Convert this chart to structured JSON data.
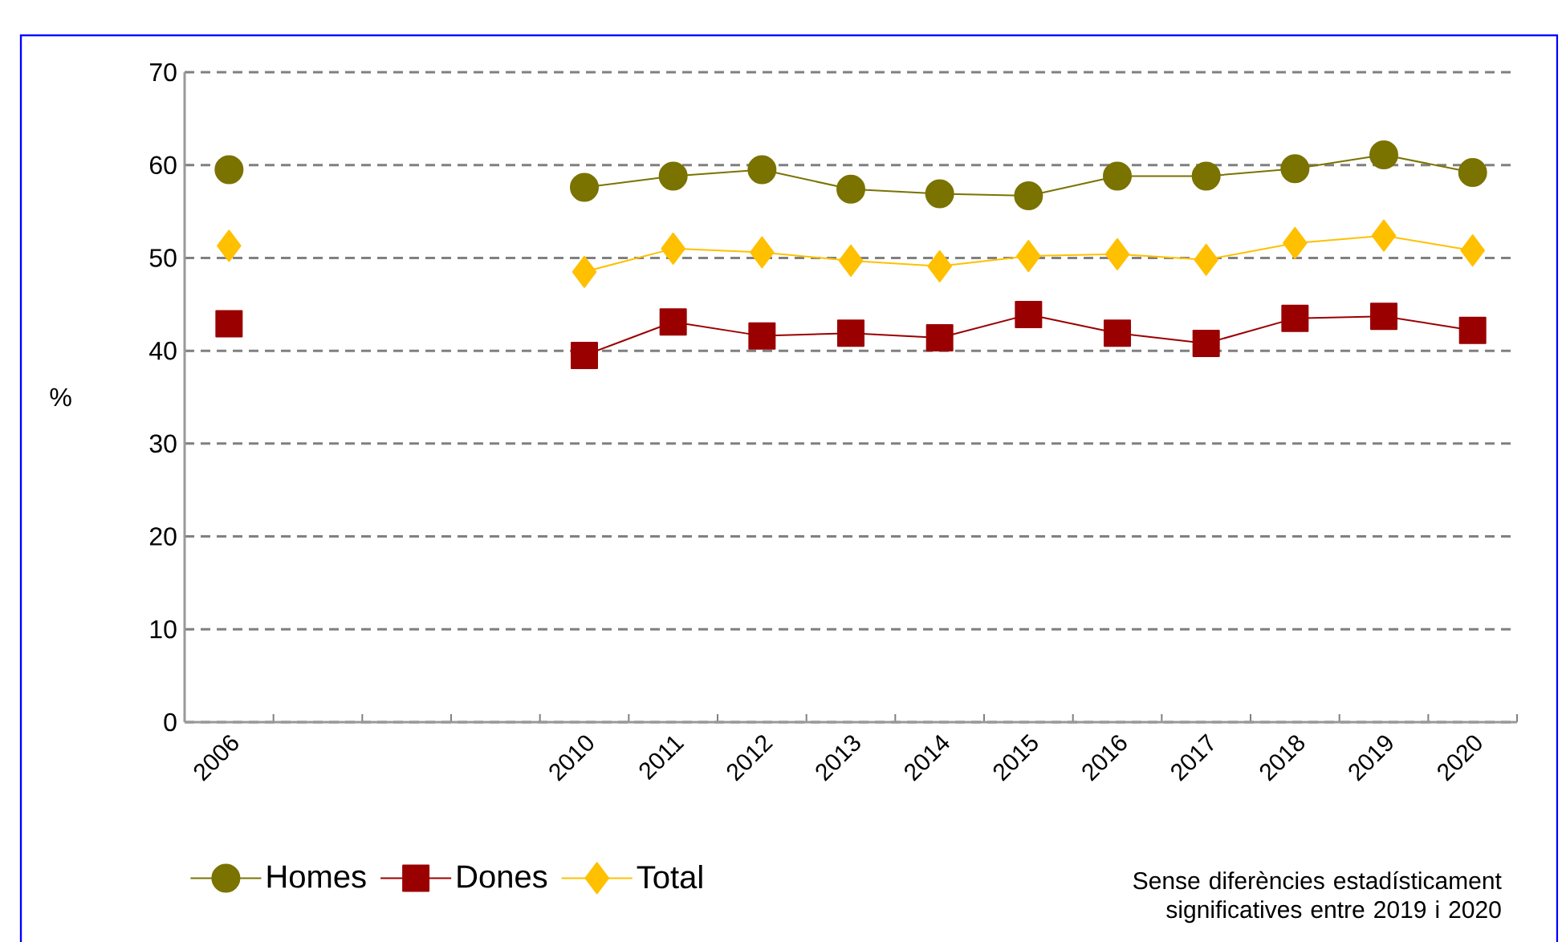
{
  "chart_data": {
    "type": "line",
    "ylabel": "%",
    "categories": [
      "2006",
      null,
      null,
      null,
      "2010",
      "2011",
      "2012",
      "2013",
      "2014",
      "2015",
      "2016",
      "2017",
      "2018",
      "2019",
      "2020"
    ],
    "series": [
      {
        "name": "Homes",
        "color": "#7a7300",
        "marker": "circle",
        "values": [
          59.5,
          null,
          null,
          null,
          57.6,
          58.8,
          59.5,
          57.4,
          56.9,
          56.7,
          58.8,
          58.8,
          59.6,
          61.1,
          59.2
        ]
      },
      {
        "name": "Dones",
        "color": "#9b0000",
        "marker": "square",
        "values": [
          42.9,
          null,
          null,
          null,
          39.5,
          43.1,
          41.6,
          41.9,
          41.4,
          43.9,
          41.9,
          40.8,
          43.5,
          43.7,
          42.2
        ]
      },
      {
        "name": "Total",
        "color": "#ffc000",
        "marker": "diamond",
        "values": [
          51.3,
          null,
          null,
          null,
          48.5,
          51.0,
          50.6,
          49.7,
          49.1,
          50.2,
          50.4,
          49.8,
          51.6,
          52.4,
          50.8
        ]
      }
    ],
    "ylim": [
      0,
      70
    ],
    "yticks": [
      0,
      10,
      20,
      30,
      40,
      50,
      60,
      70
    ],
    "grid": "y",
    "legend": "bottom left",
    "line_style": "solid",
    "annotations": [
      "Sense diferències estadísticament significatives entre 2019 i 2020"
    ]
  }
}
